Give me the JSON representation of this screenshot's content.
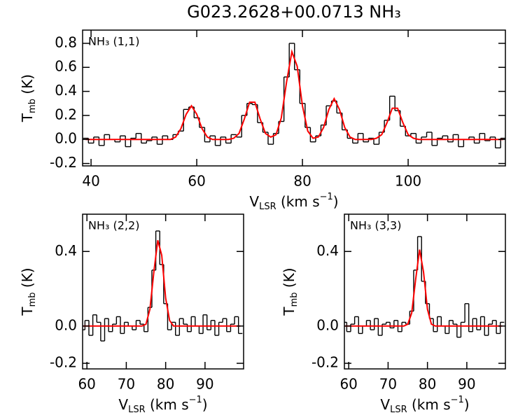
{
  "chart_data": [
    {
      "type": "step-fit",
      "title": "G023.2628+00.0713 NH₃",
      "annotation": "NH₃ (1,1)",
      "xlabel": [
        "V",
        "LSR",
        " (km s",
        "−1",
        ")"
      ],
      "ylabel": [
        "T",
        "mb",
        " (K)"
      ],
      "xlim": [
        38.4,
        118.4
      ],
      "ylim": [
        -0.22,
        0.91
      ],
      "xticks": [
        40,
        60,
        80,
        100
      ],
      "yticks": [
        -0.2,
        {
          "value": 0,
          "label": "0.0"
        },
        0.2,
        0.4,
        0.6,
        0.8
      ],
      "x": [
        39,
        40,
        41,
        42,
        43,
        44,
        45,
        46,
        47,
        48,
        49,
        50,
        51,
        52,
        53,
        54,
        55,
        56,
        57,
        58,
        59,
        60,
        61,
        62,
        63,
        64,
        65,
        66,
        67,
        68,
        69,
        70,
        71,
        72,
        73,
        74,
        75,
        76,
        77,
        78,
        79,
        80,
        81,
        82,
        83,
        84,
        85,
        86,
        87,
        88,
        89,
        90,
        91,
        92,
        93,
        94,
        95,
        96,
        97,
        98,
        99,
        100,
        101,
        102,
        103,
        104,
        105,
        106,
        107,
        108,
        109,
        110,
        111,
        112,
        113,
        114,
        115,
        116,
        117,
        118
      ],
      "series": [
        {
          "style": "step",
          "color": "#000000",
          "values": [
            0.01,
            -0.03,
            0.02,
            -0.05,
            0.04,
            0.0,
            -0.02,
            0.03,
            -0.06,
            0.01,
            0.05,
            -0.03,
            -0.01,
            0.02,
            -0.04,
            0.03,
            0.0,
            0.04,
            0.07,
            0.25,
            0.27,
            0.18,
            0.1,
            -0.02,
            0.03,
            -0.05,
            0.02,
            -0.03,
            0.04,
            0.02,
            0.2,
            0.3,
            0.29,
            0.14,
            0.06,
            -0.04,
            0.05,
            0.15,
            0.52,
            0.8,
            0.58,
            0.3,
            0.1,
            -0.02,
            0.03,
            0.12,
            0.28,
            0.32,
            0.22,
            0.08,
            0.01,
            -0.03,
            0.05,
            -0.02,
            0.01,
            -0.04,
            0.06,
            0.16,
            0.36,
            0.24,
            0.11,
            0.03,
            0.05,
            -0.03,
            0.02,
            0.06,
            -0.05,
            0.01,
            0.03,
            -0.02,
            0.04,
            -0.06,
            0.0,
            0.02,
            -0.03,
            0.05,
            -0.01,
            0.02,
            -0.07,
            0.01
          ]
        },
        {
          "style": "line",
          "color": "#ff0000",
          "values": [
            0,
            0,
            0,
            0,
            0,
            0,
            0,
            0,
            0,
            0,
            0,
            0,
            0,
            0,
            0,
            0,
            0,
            0.02,
            0.09,
            0.21,
            0.28,
            0.21,
            0.09,
            0.02,
            0,
            0,
            0,
            0,
            0.01,
            0.05,
            0.17,
            0.31,
            0.31,
            0.17,
            0.05,
            0.02,
            0.04,
            0.18,
            0.48,
            0.73,
            0.61,
            0.28,
            0.07,
            0.01,
            0.02,
            0.1,
            0.25,
            0.34,
            0.25,
            0.1,
            0.02,
            0,
            0,
            0,
            0,
            0.01,
            0.04,
            0.14,
            0.26,
            0.26,
            0.14,
            0.04,
            0.01,
            0,
            0,
            0,
            0,
            0,
            0,
            0,
            0,
            0,
            0,
            0,
            0,
            0,
            0,
            0,
            0,
            0
          ]
        }
      ]
    },
    {
      "type": "step-fit",
      "annotation": "NH₃ (2,2)",
      "xlabel": [
        "V",
        "LSR",
        " (km s",
        "−1",
        ")"
      ],
      "ylabel": [
        "T",
        "mb",
        " (K)"
      ],
      "xlim": [
        58.9,
        99.8
      ],
      "ylim": [
        -0.23,
        0.6
      ],
      "xticks": [
        60,
        70,
        80,
        90
      ],
      "yticks": [
        -0.2,
        {
          "value": 0,
          "label": "0.0"
        },
        0.4
      ],
      "x": [
        59,
        60,
        61,
        62,
        63,
        64,
        65,
        66,
        67,
        68,
        69,
        70,
        71,
        72,
        73,
        74,
        75,
        76,
        77,
        78,
        79,
        80,
        81,
        82,
        83,
        84,
        85,
        86,
        87,
        88,
        89,
        90,
        91,
        92,
        93,
        94,
        95,
        96,
        97,
        98,
        99
      ],
      "series": [
        {
          "style": "step",
          "color": "#000000",
          "values": [
            -0.02,
            0.03,
            -0.05,
            0.06,
            0.02,
            -0.08,
            0.04,
            -0.03,
            0.01,
            0.05,
            -0.04,
            0.02,
            0.0,
            -0.02,
            0.03,
            0.01,
            -0.03,
            0.1,
            0.3,
            0.51,
            0.33,
            0.12,
            -0.02,
            0.02,
            -0.05,
            0.04,
            0.01,
            -0.03,
            0.05,
            0.0,
            -0.04,
            0.06,
            -0.02,
            0.03,
            -0.05,
            0.02,
            0.04,
            -0.03,
            0.01,
            0.05,
            -0.04
          ]
        },
        {
          "style": "line",
          "color": "#ff0000",
          "values": [
            0,
            0,
            0,
            0,
            0,
            0,
            0,
            0,
            0,
            0,
            0,
            0,
            0,
            0,
            0,
            0,
            0.01,
            0.09,
            0.29,
            0.46,
            0.38,
            0.15,
            0.03,
            0,
            0,
            0,
            0,
            0,
            0,
            0,
            0,
            0,
            0,
            0,
            0,
            0,
            0,
            0,
            0,
            0,
            0
          ]
        }
      ]
    },
    {
      "type": "step-fit",
      "annotation": "NH₃ (3,3)",
      "xlabel": [
        "V",
        "LSR",
        " (km s",
        "−1",
        ")"
      ],
      "ylabel": [
        "T",
        "mb",
        " (K)"
      ],
      "xlim": [
        58.9,
        99.8
      ],
      "ylim": [
        -0.23,
        0.6
      ],
      "xticks": [
        60,
        70,
        80,
        90
      ],
      "yticks": [
        -0.2,
        {
          "value": 0,
          "label": "0.0"
        },
        0.4
      ],
      "x": [
        59,
        60,
        61,
        62,
        63,
        64,
        65,
        66,
        67,
        68,
        69,
        70,
        71,
        72,
        73,
        74,
        75,
        76,
        77,
        78,
        79,
        80,
        81,
        82,
        83,
        84,
        85,
        86,
        87,
        88,
        89,
        90,
        91,
        92,
        93,
        94,
        95,
        96,
        97,
        98,
        99
      ],
      "series": [
        {
          "style": "step",
          "color": "#000000",
          "values": [
            0.02,
            -0.03,
            0.01,
            0.05,
            -0.04,
            0.0,
            0.03,
            -0.02,
            0.04,
            -0.05,
            0.01,
            0.02,
            -0.01,
            0.03,
            -0.03,
            0.02,
            0.01,
            0.08,
            0.3,
            0.48,
            0.24,
            0.12,
            0.04,
            -0.03,
            0.05,
            0.0,
            -0.04,
            0.03,
            0.01,
            -0.06,
            0.02,
            0.12,
            -0.03,
            0.04,
            -0.02,
            0.05,
            -0.05,
            0.01,
            0.03,
            -0.04,
            0.02
          ]
        },
        {
          "style": "line",
          "color": "#ff0000",
          "values": [
            0,
            0,
            0,
            0,
            0,
            0,
            0,
            0,
            0,
            0,
            0,
            0,
            0,
            0,
            0,
            0,
            0.01,
            0.07,
            0.25,
            0.41,
            0.29,
            0.09,
            0.01,
            0,
            0,
            0,
            0,
            0,
            0,
            0,
            0,
            0,
            0,
            0,
            0,
            0,
            0,
            0,
            0,
            0,
            0
          ]
        }
      ]
    }
  ]
}
